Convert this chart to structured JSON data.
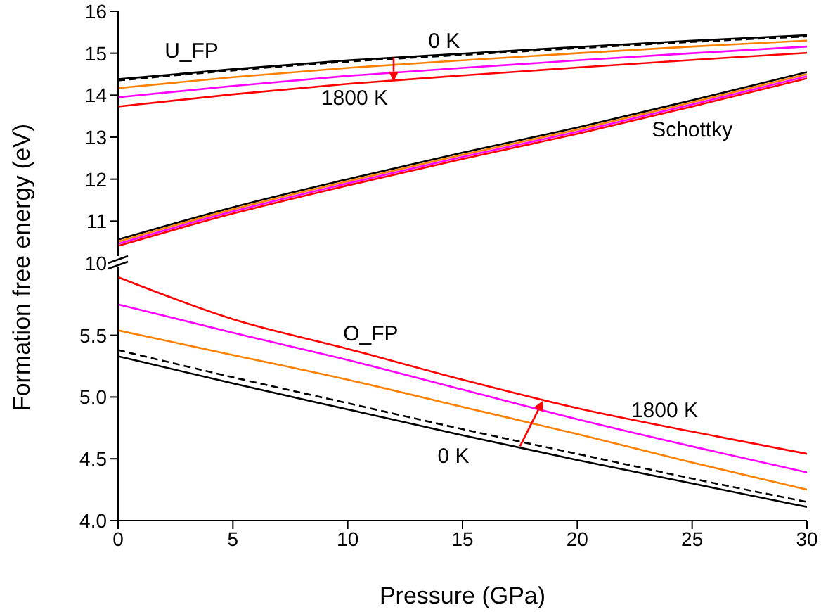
{
  "chart_data": [
    {
      "type": "line",
      "ylabel": "Formation free energy (eV)",
      "x": [
        0,
        5,
        10,
        15,
        20,
        25,
        30
      ],
      "xlim": [
        0,
        30
      ],
      "ylim": [
        10,
        16
      ],
      "yticks": [
        10,
        11,
        12,
        13,
        14,
        15,
        16
      ],
      "tick_labels": "y",
      "grid": false,
      "legend": false,
      "marker": "none",
      "series": [
        {
          "color": "#000000",
          "line_style": "solid",
          "values": [
            14.38,
            14.62,
            14.83,
            14.99,
            15.15,
            15.3,
            15.43
          ]
        },
        {
          "color": "#000000",
          "line_style": "dashed",
          "values": [
            14.35,
            14.59,
            14.8,
            14.96,
            15.12,
            15.27,
            15.4
          ]
        },
        {
          "color": "#ff8000",
          "line_style": "solid",
          "values": [
            14.17,
            14.43,
            14.65,
            14.83,
            15.0,
            15.16,
            15.3
          ]
        },
        {
          "color": "#ff00ff",
          "line_style": "solid",
          "values": [
            13.95,
            14.22,
            14.46,
            14.65,
            14.83,
            15.0,
            15.16
          ]
        },
        {
          "color": "#ff0000",
          "line_style": "solid",
          "values": [
            13.73,
            14.02,
            14.27,
            14.47,
            14.66,
            14.84,
            15.01
          ]
        },
        {
          "color": "#000000",
          "line_style": "solid",
          "values": [
            10.56,
            11.33,
            12.0,
            12.63,
            13.23,
            13.88,
            14.55
          ]
        },
        {
          "color": "#ff8000",
          "line_style": "solid",
          "values": [
            10.51,
            11.28,
            11.95,
            12.58,
            13.18,
            13.83,
            14.5
          ]
        },
        {
          "color": "#ff00ff",
          "line_style": "solid",
          "values": [
            10.46,
            11.23,
            11.9,
            12.53,
            13.13,
            13.78,
            14.45
          ]
        },
        {
          "color": "#ff0000",
          "line_style": "solid",
          "values": [
            10.41,
            11.18,
            11.85,
            12.48,
            13.08,
            13.73,
            14.4
          ]
        }
      ],
      "annotations": [
        "U_FP",
        "0 K",
        "1800 K",
        "Schottky"
      ]
    },
    {
      "type": "line",
      "xlabel": "Pressure (GPa)",
      "x": [
        0,
        5,
        10,
        15,
        20,
        25,
        30
      ],
      "xlim": [
        0,
        30
      ],
      "xticks": [
        0,
        5,
        10,
        15,
        20,
        25,
        30
      ],
      "ylim": [
        4,
        6.05
      ],
      "yticks": [
        {
          "value": 4,
          "label": "4.0"
        },
        4.5,
        {
          "value": 5,
          "label": "5.0"
        },
        5.5
      ],
      "grid": false,
      "legend": false,
      "marker": "none",
      "series": [
        {
          "color": "#000000",
          "line_style": "solid",
          "values": [
            5.33,
            5.11,
            4.9,
            4.69,
            4.49,
            4.3,
            4.11
          ]
        },
        {
          "color": "#000000",
          "line_style": "dashed",
          "values": [
            5.38,
            5.16,
            4.95,
            4.74,
            4.54,
            4.34,
            4.15
          ]
        },
        {
          "color": "#ff8000",
          "line_style": "solid",
          "values": [
            5.54,
            5.34,
            5.14,
            4.92,
            4.7,
            4.47,
            4.25
          ]
        },
        {
          "color": "#ff00ff",
          "line_style": "solid",
          "values": [
            5.75,
            5.52,
            5.3,
            5.06,
            4.82,
            4.6,
            4.39
          ]
        },
        {
          "color": "#ff0000",
          "line_style": "solid",
          "values": [
            5.97,
            5.63,
            5.39,
            5.14,
            4.91,
            4.72,
            4.54
          ]
        }
      ],
      "annotations": [
        "O_FP",
        "1800 K",
        "0 K"
      ]
    }
  ]
}
